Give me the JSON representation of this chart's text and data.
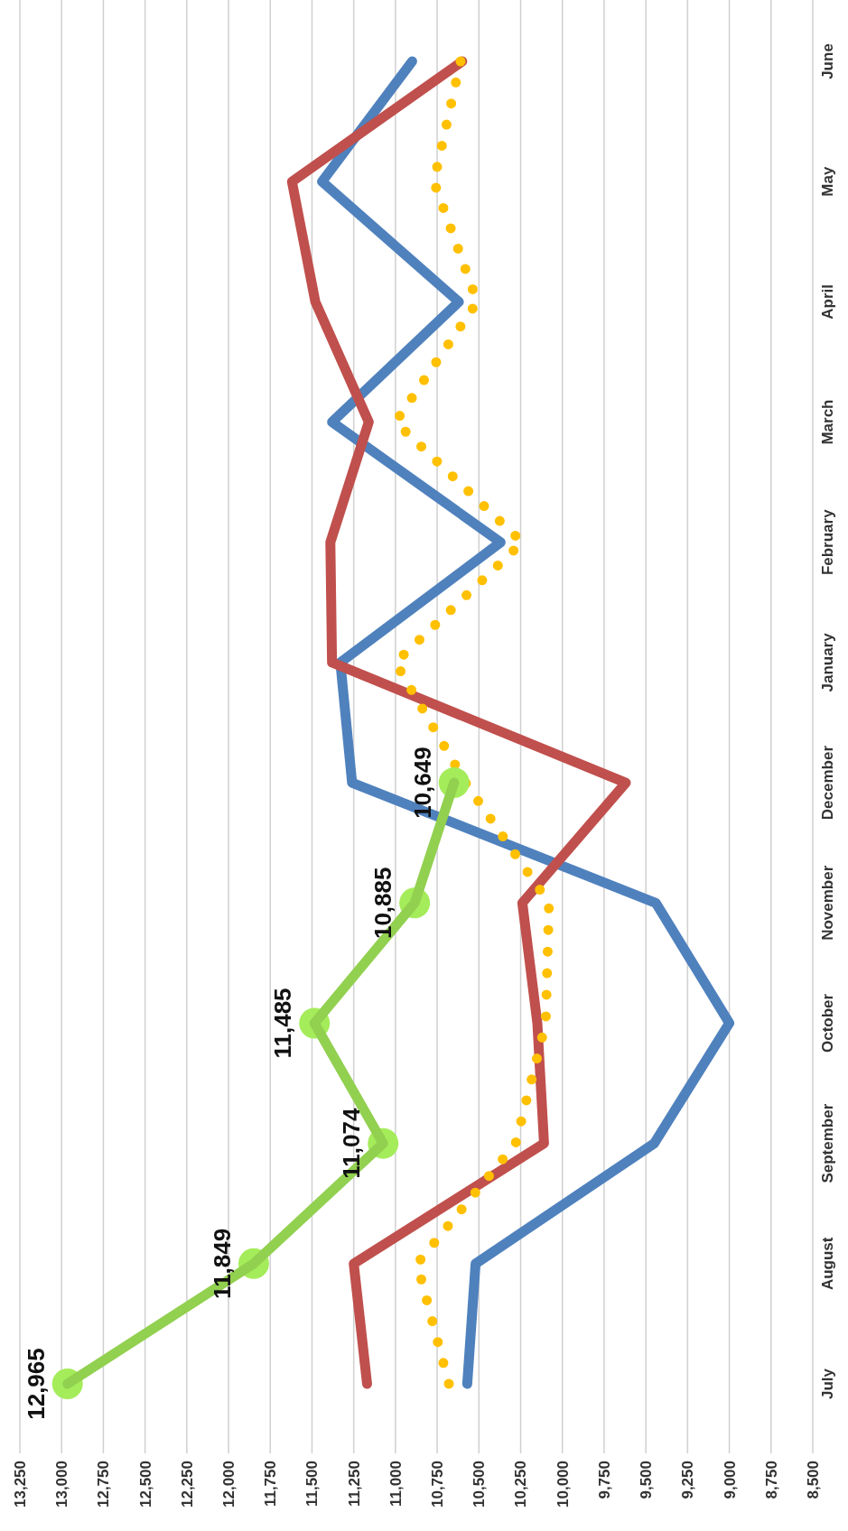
{
  "chart_data": {
    "type": "line",
    "orientation": "horizontal",
    "categories": [
      "June",
      "May",
      "April",
      "March",
      "February",
      "January",
      "December",
      "November",
      "October",
      "September",
      "August",
      "July"
    ],
    "xlim": [
      13250,
      8500
    ],
    "xticks": [
      {
        "value": 13250,
        "label": "13,250"
      },
      {
        "value": 13000,
        "label": "13,000"
      },
      {
        "value": 12750,
        "label": "12,750"
      },
      {
        "value": 12500,
        "label": "12,500"
      },
      {
        "value": 12250,
        "label": "12,250"
      },
      {
        "value": 12000,
        "label": "12,000"
      },
      {
        "value": 11750,
        "label": "11,750"
      },
      {
        "value": 11500,
        "label": "11,500"
      },
      {
        "value": 11250,
        "label": "11,250"
      },
      {
        "value": 11000,
        "label": "11,000"
      },
      {
        "value": 10750,
        "label": "10,750"
      },
      {
        "value": 10500,
        "label": "10,500"
      },
      {
        "value": 10250,
        "label": "10,250"
      },
      {
        "value": 10000,
        "label": "10,000"
      },
      {
        "value": 9750,
        "label": "9,750"
      },
      {
        "value": 9500,
        "label": "9,500"
      },
      {
        "value": 9250,
        "label": "9,250"
      },
      {
        "value": 9000,
        "label": "9,000"
      },
      {
        "value": 8750,
        "label": "8,750"
      },
      {
        "value": 8500,
        "label": "8,500"
      }
    ],
    "grid": "x",
    "marker": "none",
    "line_style": "solid",
    "series": [
      {
        "color": "#4f81bd",
        "values": [
          10900,
          11440,
          10620,
          11380,
          10370,
          11330,
          11260,
          9440,
          9000,
          9450,
          10520,
          10570
        ]
      },
      {
        "color": "#c0504d",
        "values": [
          10600,
          11620,
          11480,
          11160,
          11390,
          11380,
          9620,
          10240,
          10150,
          10110,
          11250,
          11170
        ]
      },
      {
        "color": "#ffc000",
        "line_style": "dotted",
        "values": [
          10610,
          10770,
          10510,
          11000,
          10240,
          11000,
          10580,
          10080,
          10100,
          10280,
          10870,
          10680
        ]
      },
      {
        "color": "#92d050",
        "marker": "circle",
        "values": [
          null,
          null,
          null,
          null,
          null,
          null,
          10649,
          10885,
          11485,
          11074,
          11849,
          12965
        ],
        "value_labels": [
          null,
          null,
          null,
          null,
          null,
          null,
          "10,649",
          "10,885",
          "11,485",
          "11,074",
          "11,849",
          "12,965"
        ]
      }
    ]
  }
}
